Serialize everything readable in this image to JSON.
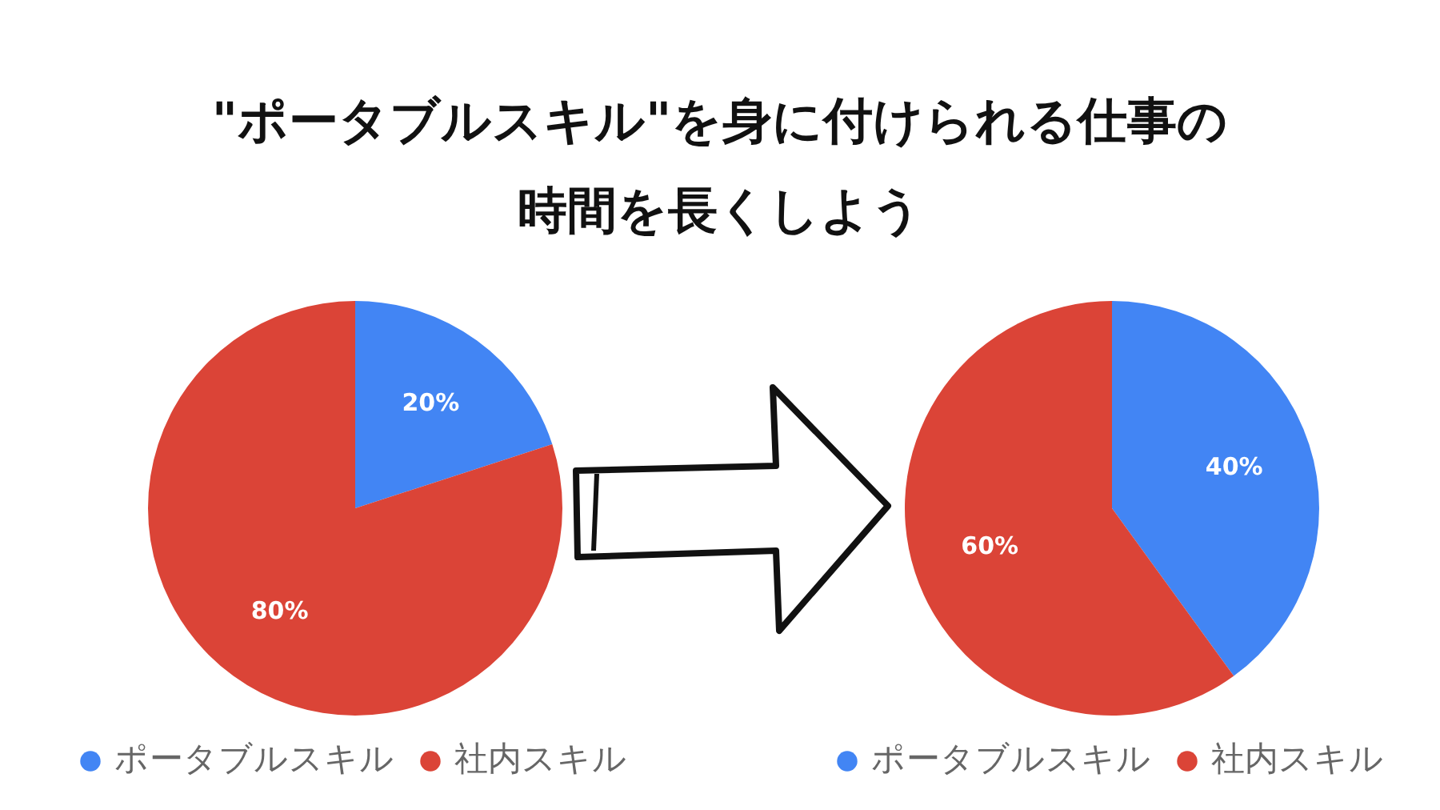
{
  "chart_data": [
    {
      "type": "pie",
      "title": "\"ポータブルスキル\"を身に付けられる仕事の時間を長くしよう",
      "categories": [
        "ポータブルスキル",
        "社内スキル"
      ],
      "values": [
        20,
        80
      ],
      "colors": [
        "#4285f4",
        "#db4437"
      ],
      "value_labels": [
        "20%",
        "80%"
      ],
      "legend": "bottom"
    },
    {
      "type": "pie",
      "categories": [
        "ポータブルスキル",
        "社内スキル"
      ],
      "values": [
        40,
        60
      ],
      "colors": [
        "#4285f4",
        "#db4437"
      ],
      "value_labels": [
        "40%",
        "60%"
      ],
      "legend": "bottom"
    }
  ]
}
